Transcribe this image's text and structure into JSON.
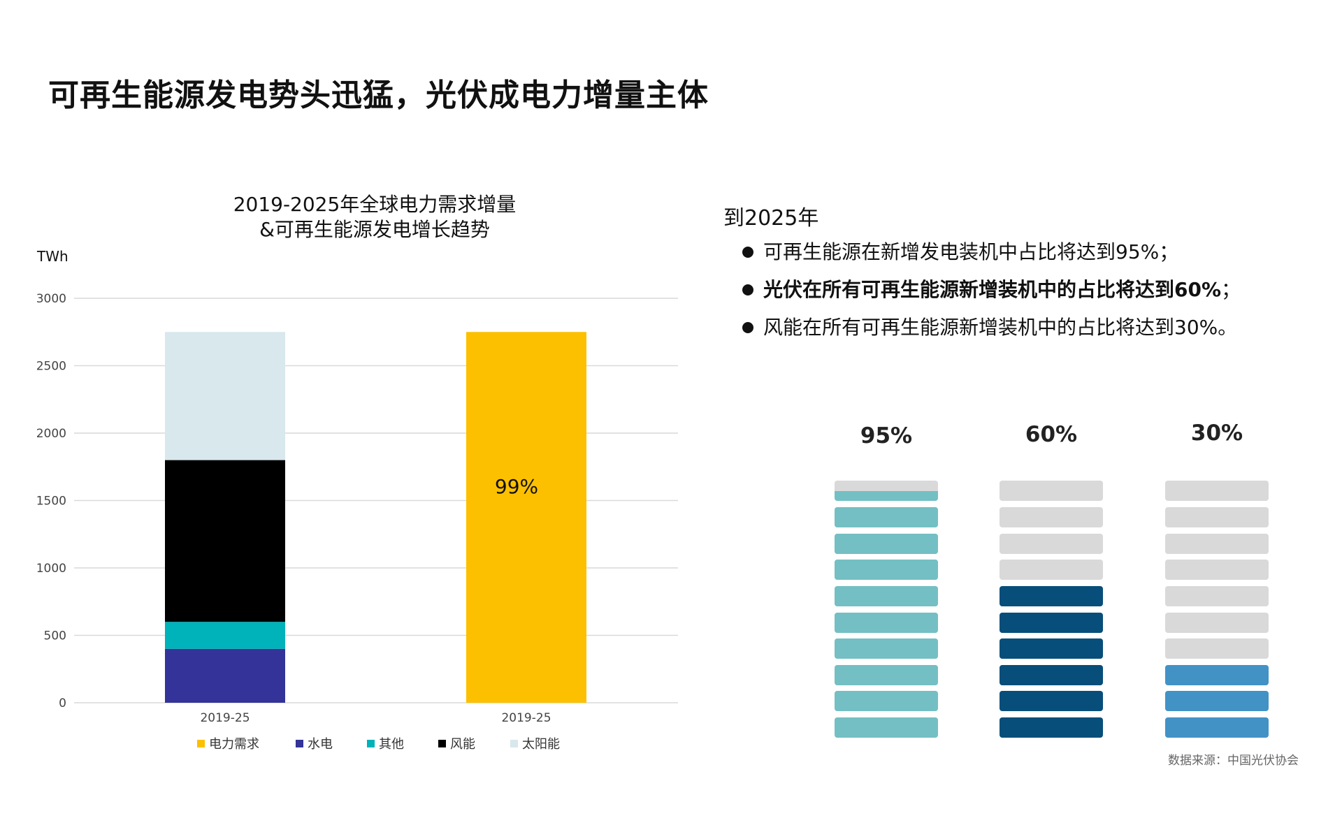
{
  "page": {
    "title": "可再生能源发电势头迅猛，光伏成电力增量主体"
  },
  "chart_data": {
    "type": "bar",
    "title": "2019-2025年全球电力需求增量",
    "subtitle": "&可再生能源发电增长趋势",
    "ylabel": "TWh",
    "ylim": [
      0,
      3000
    ],
    "yticks": [
      "0",
      "500",
      "1000",
      "1500",
      "2000",
      "2500",
      "3000"
    ],
    "categories": [
      "2019-25",
      "2019-25"
    ],
    "grid": true,
    "legend_position": "bottom",
    "series": [
      {
        "name": "电力需求",
        "color": "#fcc000",
        "values": [
          0,
          2750
        ]
      },
      {
        "name": "水电",
        "color": "#333399",
        "values": [
          400,
          0
        ]
      },
      {
        "name": "其他",
        "color": "#00b2b9",
        "values": [
          200,
          0
        ]
      },
      {
        "name": "风能",
        "color": "#000000",
        "values": [
          1200,
          0
        ]
      },
      {
        "name": "太阳能",
        "color": "#d8e8ec",
        "values": [
          950,
          0
        ]
      }
    ],
    "annotations": [
      {
        "category_index": 1,
        "text": "99%"
      }
    ]
  },
  "summary": {
    "heading": "到2025年",
    "bullets": [
      {
        "text": "可再生能源在新增发电装机中占比将达到95%；",
        "strong": false
      },
      {
        "text": "光伏在所有可再生能源新增装机中的占比将达到60%",
        "suffix": "；",
        "strong": true
      },
      {
        "text": "风能在所有可再生能源新增装机中的占比将达到30%。",
        "strong": false
      }
    ]
  },
  "gauges": [
    {
      "label": "95%",
      "value": 0.95,
      "color": "#74bfc3"
    },
    {
      "label": "60%",
      "value": 0.6,
      "color": "#074e7a"
    },
    {
      "label": "30%",
      "value": 0.3,
      "color": "#4292c6"
    }
  ],
  "gauge_empty_color": "#d9d9d9",
  "source": "数据来源：中国光伏协会"
}
